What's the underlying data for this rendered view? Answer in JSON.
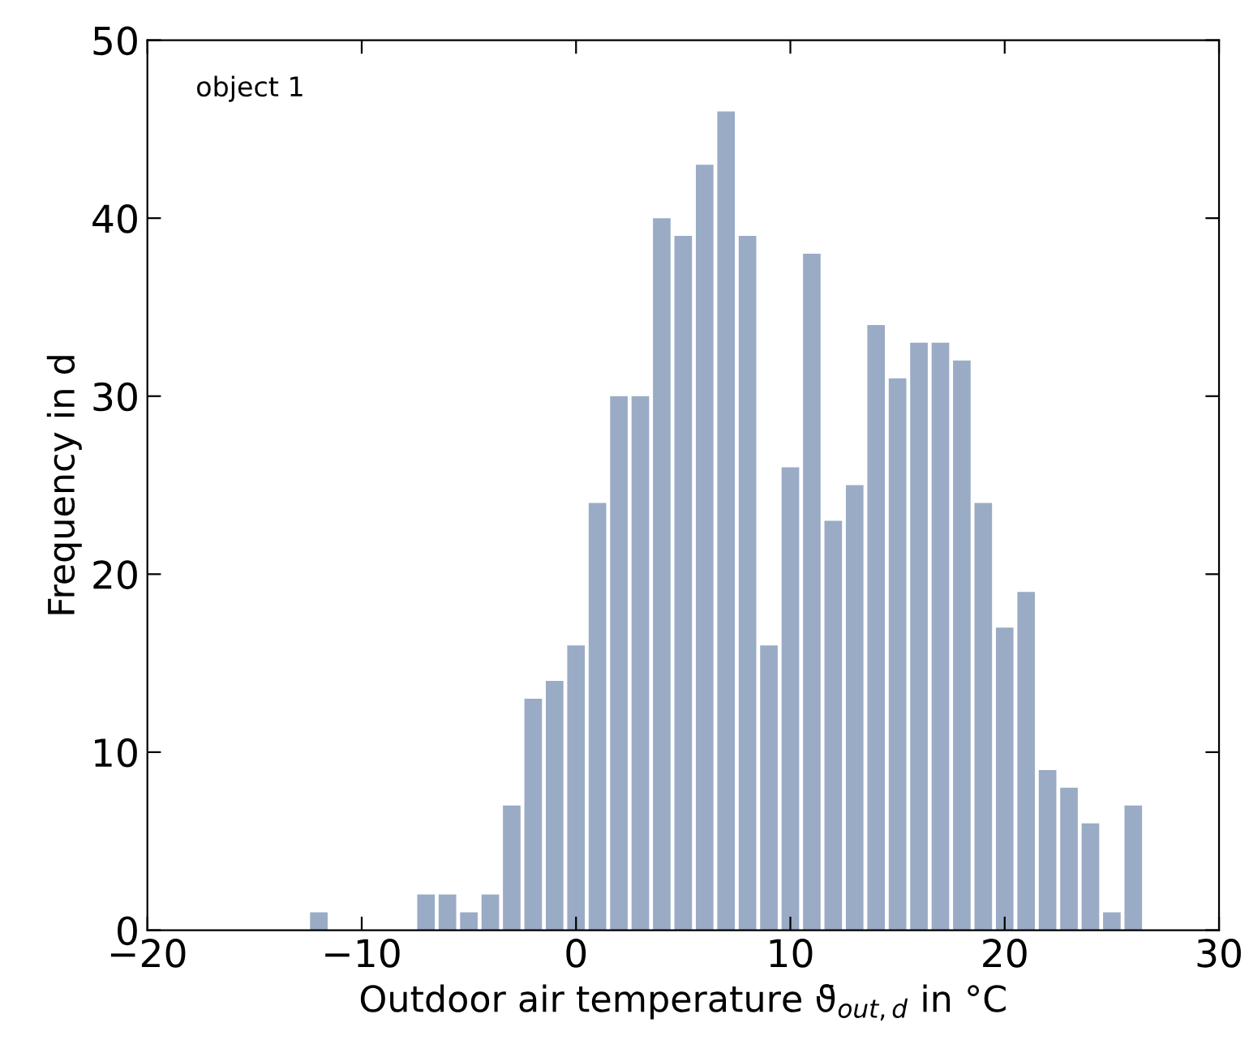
{
  "chart_data": {
    "type": "histogram",
    "xlabel": "Outdoor air temperature ϑ̄$_{out,d}$ in °C",
    "ylabel": "Frequency in d",
    "annotations": [
      "object 1"
    ],
    "bins": [
      -12.5,
      -11.5,
      -10.5,
      -9.5,
      -8.5,
      -7.5,
      -6.5,
      -5.5,
      -4.5,
      -3.5,
      -2.5,
      -1.5,
      -0.5,
      0.5,
      1.5,
      2.5,
      3.5,
      4.5,
      5.5,
      6.5,
      7.5,
      8.5,
      9.5,
      10.5,
      11.5,
      12.5,
      13.5,
      14.5,
      15.5,
      16.5,
      17.5,
      18.5,
      19.5,
      20.5,
      21.5,
      22.5,
      23.5,
      24.5,
      25.5,
      26.5
    ],
    "values": [
      1,
      0,
      0,
      0,
      0,
      2,
      2,
      1,
      2,
      7,
      13,
      14,
      16,
      24,
      30,
      30,
      40,
      39,
      43,
      46,
      39,
      16,
      26,
      38,
      23,
      25,
      34,
      31,
      33,
      33,
      32,
      24,
      17,
      19,
      9,
      8,
      6,
      1,
      7
    ],
    "color": "#9aabc5",
    "xlim": [
      -20,
      30
    ],
    "xticks": [
      {
        "value": -20,
        "label": "−20"
      },
      {
        "value": -10,
        "label": "−10"
      },
      0,
      10,
      20,
      30
    ],
    "ylim": [
      0,
      50
    ],
    "yticks": [
      0,
      10,
      20,
      30,
      40,
      50
    ],
    "grid": false
  }
}
